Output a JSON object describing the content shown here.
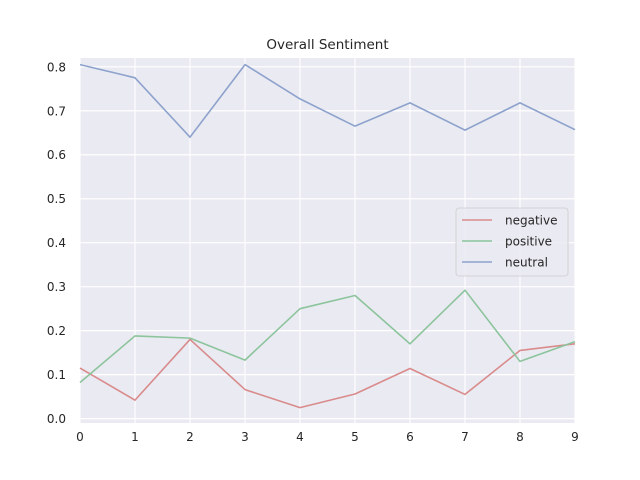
{
  "chart_data": {
    "type": "line",
    "title": "Overall Sentiment",
    "xlabel": "",
    "ylabel": "",
    "x": [
      0,
      1,
      2,
      3,
      4,
      5,
      6,
      7,
      8,
      9
    ],
    "xlim": [
      0,
      9
    ],
    "ylim": [
      -0.01,
      0.82
    ],
    "xticks": [
      "0",
      "1",
      "2",
      "3",
      "4",
      "5",
      "6",
      "7",
      "8",
      "9"
    ],
    "yticks": [
      "0.0",
      "0.1",
      "0.2",
      "0.3",
      "0.4",
      "0.5",
      "0.6",
      "0.7",
      "0.8"
    ],
    "grid": true,
    "legend_position": "center-right",
    "series": [
      {
        "name": "negative",
        "color": "#d98b8b",
        "values": [
          0.115,
          0.042,
          0.18,
          0.066,
          0.025,
          0.056,
          0.114,
          0.055,
          0.155,
          0.17
        ]
      },
      {
        "name": "positive",
        "color": "#8cc49c",
        "values": [
          0.082,
          0.188,
          0.183,
          0.133,
          0.25,
          0.28,
          0.17,
          0.292,
          0.13,
          0.175
        ]
      },
      {
        "name": "neutral",
        "color": "#8da2cc",
        "values": [
          0.805,
          0.775,
          0.64,
          0.805,
          0.727,
          0.665,
          0.718,
          0.656,
          0.718,
          0.657
        ]
      }
    ]
  }
}
